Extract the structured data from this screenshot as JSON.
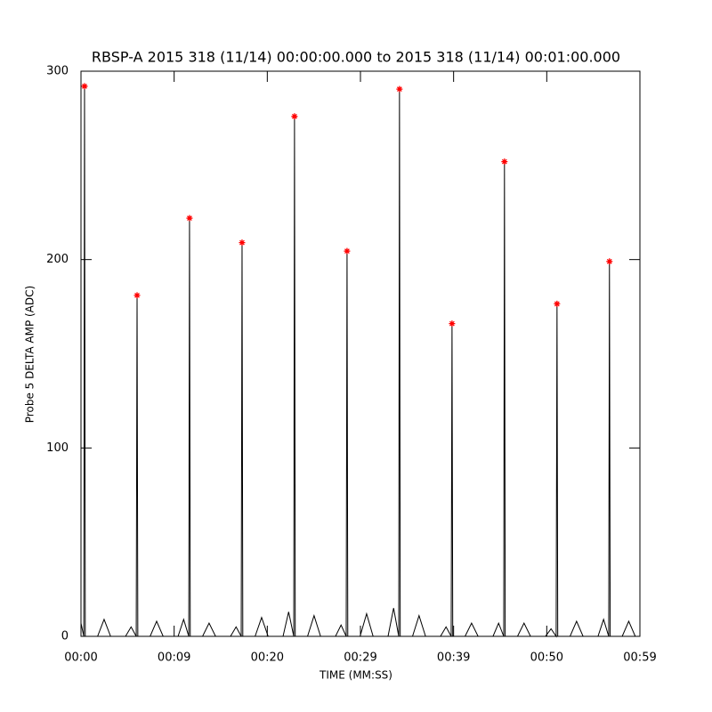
{
  "chart_data": {
    "type": "line",
    "title": "RBSP-A 2015 318 (11/14) 00:00:00.000 to 2015 318 (11/14) 00:01:00.000",
    "x_label": "TIME (MM:SS)",
    "y_label": "Probe 5 DELTA AMP (ADC)",
    "xlim": [
      0,
      60
    ],
    "ylim": [
      0,
      300
    ],
    "xticks": [
      {
        "value": 0,
        "label": "00:00"
      },
      {
        "value": 10,
        "label": "00:09"
      },
      {
        "value": 20,
        "label": "00:20"
      },
      {
        "value": 30,
        "label": "00:29"
      },
      {
        "value": 40,
        "label": "00:39"
      },
      {
        "value": 50,
        "label": "00:50"
      },
      {
        "value": 60,
        "label": "00:59"
      }
    ],
    "yticks": [
      0,
      100,
      200,
      300
    ],
    "series": [
      {
        "color": "#000000",
        "x": [
          0,
          0.3,
          0.38,
          0.46,
          1.78,
          2.48,
          3.18,
          4.78,
          5.38,
          5.93,
          6.02,
          6.1,
          7.42,
          8.12,
          8.82,
          10.42,
          11.02,
          11.57,
          11.65,
          11.73,
          13.05,
          13.75,
          14.45,
          16.05,
          16.65,
          17.2,
          17.29,
          17.37,
          18.69,
          19.39,
          20.09,
          21.69,
          22.29,
          22.84,
          22.92,
          23.0,
          24.32,
          25.02,
          25.72,
          27.32,
          27.92,
          28.47,
          28.56,
          28.64,
          29.96,
          30.66,
          31.36,
          32.96,
          33.56,
          34.11,
          34.19,
          34.27,
          35.59,
          36.29,
          36.99,
          38.59,
          39.19,
          39.74,
          39.83,
          39.91,
          41.23,
          41.93,
          42.63,
          44.23,
          44.83,
          45.38,
          45.46,
          45.54,
          46.86,
          47.56,
          48.26,
          49.86,
          50.46,
          51.01,
          51.1,
          51.18,
          52.5,
          53.2,
          53.9,
          55.5,
          56.1,
          56.65,
          56.73,
          56.81,
          58.1,
          58.8,
          59.5,
          60
        ],
        "values": [
          7,
          0,
          292,
          0,
          0,
          9,
          0,
          0,
          5,
          0,
          181,
          0,
          0,
          8,
          0,
          0,
          9,
          0,
          222,
          0,
          0,
          7,
          0,
          0,
          5,
          0,
          209,
          0,
          0,
          10,
          0,
          0,
          13,
          0,
          276,
          0,
          0,
          11,
          0,
          0,
          6,
          0,
          204.5,
          0,
          0,
          12,
          0,
          0,
          15,
          0,
          290.5,
          0,
          0,
          11,
          0,
          0,
          5,
          0,
          166,
          0,
          0,
          7,
          0,
          0,
          7,
          0,
          252,
          0,
          0,
          7,
          0,
          0,
          4,
          0,
          176.5,
          0,
          0,
          8,
          0,
          0,
          9,
          0,
          199,
          0,
          0,
          8,
          0,
          0
        ]
      },
      {
        "type": "scatter",
        "color": "#ff0000",
        "x": [
          0.38,
          6.02,
          11.65,
          17.29,
          22.92,
          28.56,
          34.19,
          39.83,
          45.46,
          51.1,
          56.73
        ],
        "values": [
          292,
          181,
          222,
          209,
          276,
          204.5,
          290.5,
          166,
          252,
          176.5,
          199
        ]
      }
    ]
  }
}
